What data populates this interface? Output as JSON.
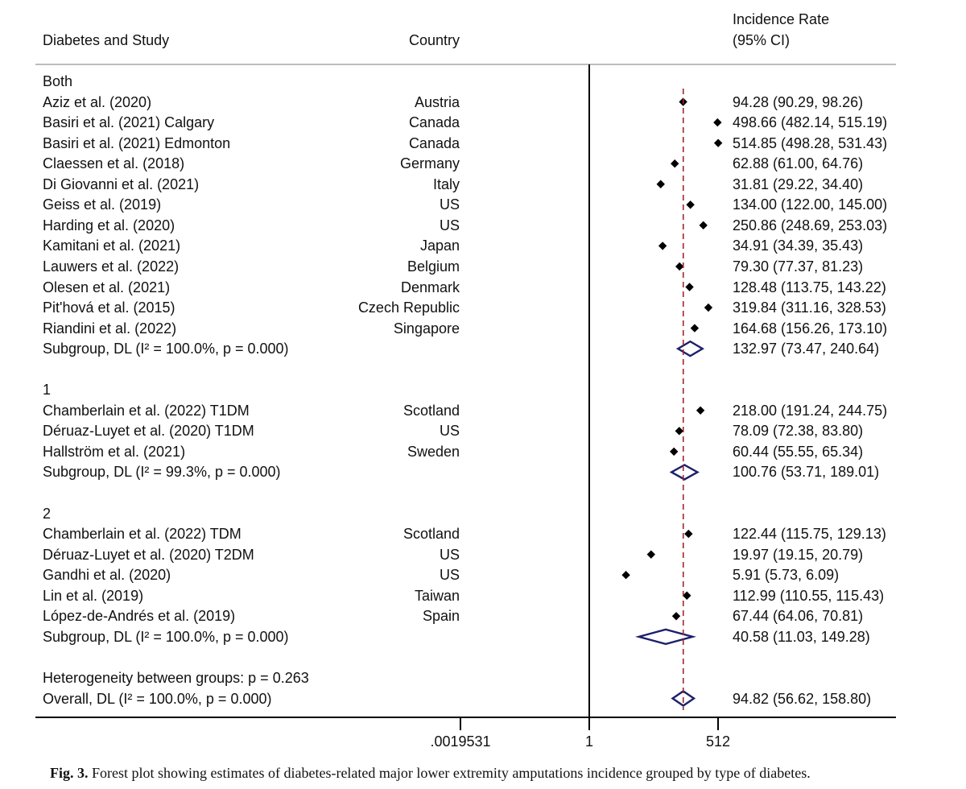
{
  "header": {
    "study_col": "Diabetes and Study",
    "country_col": "Country",
    "rate_col_line1": "Incidence Rate",
    "rate_col_line2": "(95% CI)"
  },
  "axis": {
    "ticks": [
      ".0019531",
      "1",
      "512"
    ],
    "tick_values": [
      0.0019531,
      1,
      512
    ]
  },
  "caption": {
    "label": "Fig. 3.",
    "text": "Forest plot showing estimates of diabetes-related major lower extremity amputations incidence grouped by type of diabetes."
  },
  "chart_data": {
    "type": "forest",
    "title": "",
    "x_scale": "log2",
    "xlim": [
      0.0019531,
      1048576
    ],
    "reference_line": 94.82,
    "null_line": 1,
    "rows": [
      {
        "kind": "group",
        "label": "Both"
      },
      {
        "kind": "study",
        "label": "Aziz et al. (2020)",
        "country": "Austria",
        "est": 94.28,
        "lo": 90.29,
        "hi": 98.26,
        "ci_text": "94.28 (90.29, 98.26)"
      },
      {
        "kind": "study",
        "label": "Basiri et al. (2021) Calgary",
        "country": "Canada",
        "est": 498.66,
        "lo": 482.14,
        "hi": 515.19,
        "ci_text": "498.66 (482.14, 515.19)"
      },
      {
        "kind": "study",
        "label": "Basiri et al. (2021) Edmonton",
        "country": "Canada",
        "est": 514.85,
        "lo": 498.28,
        "hi": 531.43,
        "ci_text": "514.85 (498.28, 531.43)"
      },
      {
        "kind": "study",
        "label": "Claessen et al. (2018)",
        "country": "Germany",
        "est": 62.88,
        "lo": 61.0,
        "hi": 64.76,
        "ci_text": "62.88 (61.00, 64.76)"
      },
      {
        "kind": "study",
        "label": "Di Giovanni et al. (2021)",
        "country": "Italy",
        "est": 31.81,
        "lo": 29.22,
        "hi": 34.4,
        "ci_text": "31.81 (29.22, 34.40)"
      },
      {
        "kind": "study",
        "label": "Geiss et al. (2019)",
        "country": "US",
        "est": 134.0,
        "lo": 122.0,
        "hi": 145.0,
        "ci_text": "134.00 (122.00, 145.00)"
      },
      {
        "kind": "study",
        "label": "Harding et al. (2020)",
        "country": "US",
        "est": 250.86,
        "lo": 248.69,
        "hi": 253.03,
        "ci_text": "250.86 (248.69, 253.03)"
      },
      {
        "kind": "study",
        "label": "Kamitani et al. (2021)",
        "country": "Japan",
        "est": 34.91,
        "lo": 34.39,
        "hi": 35.43,
        "ci_text": "34.91 (34.39, 35.43)"
      },
      {
        "kind": "study",
        "label": "Lauwers et al. (2022)",
        "country": "Belgium",
        "est": 79.3,
        "lo": 77.37,
        "hi": 81.23,
        "ci_text": "79.30 (77.37, 81.23)"
      },
      {
        "kind": "study",
        "label": "Olesen et al. (2021)",
        "country": "Denmark",
        "est": 128.48,
        "lo": 113.75,
        "hi": 143.22,
        "ci_text": "128.48 (113.75, 143.22)"
      },
      {
        "kind": "study",
        "label": "Pit'hová et al. (2015)",
        "country": "Czech Republic",
        "est": 319.84,
        "lo": 311.16,
        "hi": 328.53,
        "ci_text": "319.84 (311.16, 328.53)"
      },
      {
        "kind": "study",
        "label": "Riandini et al. (2022)",
        "country": "Singapore",
        "est": 164.68,
        "lo": 156.26,
        "hi": 173.1,
        "ci_text": "164.68 (156.26, 173.10)"
      },
      {
        "kind": "subgroup",
        "label": "Subgroup, DL (I² = 100.0%, p = 0.000)",
        "est": 132.97,
        "lo": 73.47,
        "hi": 240.64,
        "ci_text": "132.97 (73.47, 240.64)"
      },
      {
        "kind": "blank"
      },
      {
        "kind": "group",
        "label": "1"
      },
      {
        "kind": "study",
        "label": "Chamberlain et al. (2022) T1DM",
        "country": "Scotland",
        "est": 218.0,
        "lo": 191.24,
        "hi": 244.75,
        "ci_text": "218.00 (191.24, 244.75)"
      },
      {
        "kind": "study",
        "label": "Déruaz-Luyet et al. (2020) T1DM",
        "country": "US",
        "est": 78.09,
        "lo": 72.38,
        "hi": 83.8,
        "ci_text": "78.09 (72.38, 83.80)"
      },
      {
        "kind": "study",
        "label": "Hallström et al. (2021)",
        "country": "Sweden",
        "est": 60.44,
        "lo": 55.55,
        "hi": 65.34,
        "ci_text": "60.44 (55.55, 65.34)"
      },
      {
        "kind": "subgroup",
        "label": "Subgroup, DL (I² = 99.3%, p = 0.000)",
        "est": 100.76,
        "lo": 53.71,
        "hi": 189.01,
        "ci_text": "100.76 (53.71, 189.01)"
      },
      {
        "kind": "blank"
      },
      {
        "kind": "group",
        "label": "2"
      },
      {
        "kind": "study",
        "label": "Chamberlain et al. (2022) TDM",
        "country": "Scotland",
        "est": 122.44,
        "lo": 115.75,
        "hi": 129.13,
        "ci_text": "122.44 (115.75, 129.13)"
      },
      {
        "kind": "study",
        "label": "Déruaz-Luyet et al. (2020) T2DM",
        "country": "US",
        "est": 19.97,
        "lo": 19.15,
        "hi": 20.79,
        "ci_text": "19.97 (19.15, 20.79)"
      },
      {
        "kind": "study",
        "label": "Gandhi et al. (2020)",
        "country": "US",
        "est": 5.91,
        "lo": 5.73,
        "hi": 6.09,
        "ci_text": "5.91 (5.73, 6.09)"
      },
      {
        "kind": "study",
        "label": "Lin et al. (2019)",
        "country": "Taiwan",
        "est": 112.99,
        "lo": 110.55,
        "hi": 115.43,
        "ci_text": "112.99 (110.55, 115.43)"
      },
      {
        "kind": "study",
        "label": "López-de-Andrés et al. (2019)",
        "country": "Spain",
        "est": 67.44,
        "lo": 64.06,
        "hi": 70.81,
        "ci_text": "67.44 (64.06, 70.81)"
      },
      {
        "kind": "subgroup",
        "label": "Subgroup, DL (I² = 100.0%, p = 0.000)",
        "est": 40.58,
        "lo": 11.03,
        "hi": 149.28,
        "ci_text": "40.58 (11.03, 149.28)"
      },
      {
        "kind": "blank"
      },
      {
        "kind": "note",
        "label": "Heterogeneity between groups: p = 0.263"
      },
      {
        "kind": "overall",
        "label": "Overall, DL (I² = 100.0%, p = 0.000)",
        "est": 94.82,
        "lo": 56.62,
        "hi": 158.8,
        "ci_text": "94.82 (56.62, 158.80)"
      }
    ]
  }
}
